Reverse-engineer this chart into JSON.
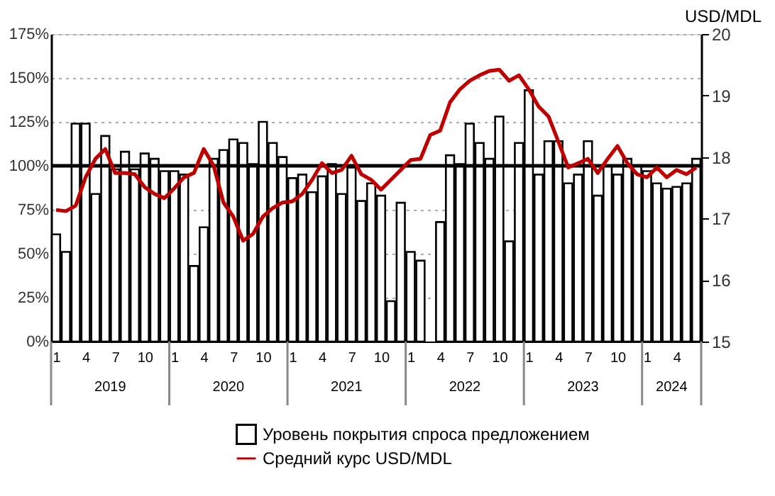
{
  "chart_data": {
    "type": "bar",
    "categories": [
      "1",
      null,
      null,
      "4",
      null,
      null,
      "7",
      null,
      null,
      "10",
      null,
      null,
      "1",
      null,
      null,
      "4",
      null,
      null,
      "7",
      null,
      null,
      "10",
      null,
      null,
      "1",
      null,
      null,
      "4",
      null,
      null,
      "7",
      null,
      null,
      "10",
      null,
      null,
      "1",
      null,
      null,
      "4",
      null,
      null,
      "7",
      null,
      null,
      "10",
      null,
      null,
      "1",
      null,
      null,
      "4",
      null,
      null,
      "7",
      null,
      null,
      "10",
      null,
      null,
      "1",
      null,
      null,
      "4",
      null,
      null
    ],
    "series": [
      {
        "name": "Уровень покрытия спроса предложением",
        "color": "#ffffff",
        "values": [
          61,
          51,
          124,
          124,
          84,
          117,
          98,
          108,
          98,
          107,
          104,
          97,
          97,
          95,
          43,
          65,
          104,
          109,
          115,
          113,
          101,
          125,
          113,
          105,
          93,
          95,
          85,
          94,
          101,
          84,
          99,
          80,
          90,
          83,
          23,
          79,
          51,
          46,
          null,
          68,
          106,
          101,
          124,
          113,
          104,
          128,
          57,
          113,
          143,
          95,
          114,
          114,
          90,
          95,
          114,
          83,
          100,
          95,
          104,
          100,
          97,
          90,
          87,
          88,
          90,
          104
        ]
      },
      {
        "name": "Средний курс USD/MDL",
        "type": "line",
        "axis": "y2",
        "color": "#c00000",
        "values": [
          17.14,
          17.12,
          17.21,
          17.67,
          17.97,
          18.13,
          17.74,
          17.74,
          17.72,
          17.51,
          17.4,
          17.33,
          17.49,
          17.67,
          17.74,
          18.13,
          17.86,
          17.26,
          17.03,
          16.64,
          16.75,
          17.03,
          17.17,
          17.26,
          17.28,
          17.4,
          17.63,
          17.9,
          17.74,
          17.79,
          18.02,
          17.72,
          17.63,
          17.47,
          17.63,
          17.79,
          17.95,
          17.97,
          18.36,
          18.43,
          18.89,
          19.1,
          19.24,
          19.33,
          19.4,
          19.42,
          19.24,
          19.33,
          19.1,
          18.82,
          18.66,
          18.25,
          17.83,
          17.9,
          17.97,
          17.74,
          17.97,
          18.18,
          17.9,
          17.72,
          17.67,
          17.83,
          17.67,
          17.79,
          17.72,
          17.83
        ]
      }
    ],
    "ylim": [
      0,
      175
    ],
    "yticks": [
      {
        "value": 0,
        "label": "0%"
      },
      {
        "value": 25,
        "label": "25%"
      },
      {
        "value": 50,
        "label": "50%"
      },
      {
        "value": 75,
        "label": "75%"
      },
      {
        "value": 100,
        "label": "100%"
      },
      {
        "value": 125,
        "label": "125%"
      },
      {
        "value": 150,
        "label": "150%"
      },
      {
        "value": 175,
        "label": "175%"
      }
    ],
    "y2label": "USD/MDL",
    "y2lim": [
      15,
      20
    ],
    "y2ticks": [
      15,
      16,
      17,
      18,
      19,
      20
    ],
    "ref_lines": [
      {
        "axis": "y",
        "value": 100,
        "color": "#000000"
      }
    ],
    "annotations": [
      "2019",
      "2020",
      "2021",
      "2022",
      "2023",
      "2024"
    ],
    "grid": "y",
    "legend": "bottom",
    "line_style": "solid"
  }
}
